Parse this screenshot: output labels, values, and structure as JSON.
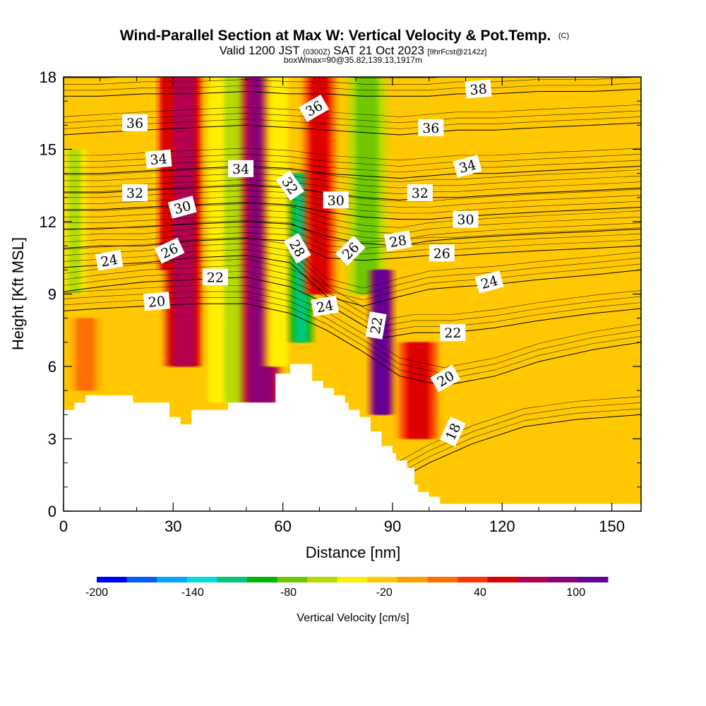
{
  "header": {
    "title": "Wind-Parallel Section at Max W: Vertical Velocity & Pot.Temp.",
    "copyright": "(C)",
    "valid_prefix": "Valid 1200 JST",
    "valid_utc": "(0300Z)",
    "valid_date": "SAT 21 Oct 2023",
    "forecast": "[9hrFcst@2142z]",
    "box_info": "boxWmax=90@35.82,139.13,1917m"
  },
  "chart_data": {
    "type": "heatmap",
    "xlabel": "Distance [nm]",
    "ylabel": "Height [Kft MSL]",
    "xlim": [
      0,
      158
    ],
    "ylim": [
      0,
      18
    ],
    "x_ticks": [
      0,
      30,
      60,
      90,
      120,
      150
    ],
    "y_ticks": [
      0,
      3,
      6,
      9,
      12,
      15,
      18
    ],
    "grid": false,
    "colorbar": {
      "label": "Vertical Velocity [cm/s]",
      "tick_labels": [
        "-200",
        "-140",
        "-80",
        "-20",
        "40",
        "100"
      ],
      "tick_values": [
        -200,
        -140,
        -80,
        -20,
        40,
        100
      ],
      "levels": [
        -200,
        -180,
        -160,
        -140,
        -120,
        -100,
        -80,
        -60,
        -40,
        -20,
        0,
        20,
        40,
        60,
        80,
        100,
        120
      ],
      "colors": [
        "#0000ff",
        "#0060ff",
        "#00a8ff",
        "#00dcdc",
        "#00c878",
        "#00b400",
        "#6ec800",
        "#b4dc00",
        "#ffee00",
        "#ffc800",
        "#ffa000",
        "#ff6e00",
        "#ff3200",
        "#dc0000",
        "#b40050",
        "#8c0078",
        "#640096"
      ]
    },
    "velocity_columns": [
      {
        "x": 3,
        "x_width": 3,
        "y0": 9,
        "y1": 15,
        "w": -30
      },
      {
        "x": 6,
        "x_width": 4,
        "y0": 5,
        "y1": 8,
        "w": 10
      },
      {
        "x": 28,
        "x_width": 2,
        "y0": 10,
        "y1": 18,
        "w": 40
      },
      {
        "x": 33,
        "x_width": 5,
        "y0": 6,
        "y1": 18,
        "w": 60
      },
      {
        "x": 42,
        "x_width": 4,
        "y0": 4.5,
        "y1": 18,
        "w": -20
      },
      {
        "x": 47,
        "x_width": 5,
        "y0": 4.5,
        "y1": 18,
        "w": -40
      },
      {
        "x": 54,
        "x_width": 5,
        "y0": 4.5,
        "y1": 18,
        "w": 80
      },
      {
        "x": 59,
        "x_width": 4,
        "y0": 6,
        "y1": 18,
        "w": -10
      },
      {
        "x": 65,
        "x_width": 3,
        "y0": 7,
        "y1": 14,
        "w": -90
      },
      {
        "x": 70,
        "x_width": 4,
        "y0": 9,
        "y1": 18,
        "w": 50
      },
      {
        "x": 83,
        "x_width": 5,
        "y0": 9,
        "y1": 18,
        "w": -50
      },
      {
        "x": 87,
        "x_width": 3,
        "y0": 4,
        "y1": 10,
        "w": 110
      },
      {
        "x": 97,
        "x_width": 5,
        "y0": 3,
        "y1": 7,
        "w": 40
      }
    ],
    "terrain": [
      [
        0,
        4.2
      ],
      [
        3,
        4.2
      ],
      [
        3,
        4.5
      ],
      [
        6,
        4.5
      ],
      [
        6,
        4.8
      ],
      [
        19,
        4.8
      ],
      [
        19,
        4.5
      ],
      [
        29,
        4.5
      ],
      [
        29,
        3.9
      ],
      [
        32,
        3.9
      ],
      [
        32,
        3.6
      ],
      [
        35,
        3.6
      ],
      [
        35,
        4.2
      ],
      [
        45,
        4.2
      ],
      [
        45,
        4.5
      ],
      [
        58,
        4.5
      ],
      [
        58,
        5.7
      ],
      [
        62,
        5.7
      ],
      [
        62,
        6.1
      ],
      [
        68,
        6.1
      ],
      [
        68,
        5.4
      ],
      [
        71,
        5.4
      ],
      [
        71,
        5.1
      ],
      [
        74,
        5.1
      ],
      [
        74,
        4.8
      ],
      [
        77,
        4.8
      ],
      [
        77,
        4.5
      ],
      [
        78,
        4.5
      ],
      [
        78,
        4.2
      ],
      [
        81,
        4.2
      ],
      [
        81,
        3.9
      ],
      [
        84,
        3.9
      ],
      [
        84,
        3.3
      ],
      [
        87,
        3.3
      ],
      [
        87,
        2.7
      ],
      [
        90,
        2.7
      ],
      [
        90,
        2.4
      ],
      [
        91,
        2.4
      ],
      [
        91,
        2.1
      ],
      [
        94,
        2.1
      ],
      [
        94,
        1.8
      ],
      [
        96,
        1.8
      ],
      [
        96,
        1.1
      ],
      [
        97,
        1.1
      ],
      [
        97,
        0.8
      ],
      [
        100,
        0.8
      ],
      [
        100,
        0.6
      ],
      [
        103,
        0.6
      ],
      [
        103,
        0.3
      ],
      [
        105,
        0.3
      ],
      [
        105,
        0.3
      ],
      [
        158,
        0.3
      ],
      [
        158,
        0
      ],
      [
        0,
        0
      ]
    ],
    "isentropes": [
      {
        "theta": 18,
        "x": [
          88,
          100,
          112,
          126,
          140,
          158
        ],
        "y": [
          1.0,
          2.0,
          2.8,
          3.5,
          3.8,
          4.0
        ]
      },
      {
        "theta": 20,
        "x": [
          0,
          10,
          22,
          35,
          50,
          62,
          72,
          82,
          92,
          104,
          118,
          130,
          145,
          158
        ],
        "y": [
          8.3,
          8.4,
          8.5,
          8.6,
          8.6,
          8.2,
          7.5,
          6.6,
          5.6,
          5.2,
          5.6,
          6.2,
          6.7,
          7.0
        ]
      },
      {
        "theta": 22,
        "x": [
          0,
          10,
          22,
          35,
          50,
          62,
          72,
          82,
          88,
          96,
          106,
          118,
          130,
          145,
          158
        ],
        "y": [
          9.1,
          9.3,
          9.5,
          9.6,
          9.7,
          9.3,
          8.6,
          7.7,
          7.2,
          7.4,
          7.4,
          7.6,
          7.9,
          8.2,
          8.4
        ]
      },
      {
        "theta": 24,
        "x": [
          0,
          10,
          22,
          35,
          50,
          62,
          72,
          82,
          92,
          100,
          108,
          118,
          130,
          145,
          158
        ],
        "y": [
          10.1,
          10.2,
          10.3,
          10.5,
          10.6,
          10.3,
          8.9,
          8.5,
          8.9,
          9.2,
          9.3,
          9.4,
          9.6,
          9.8,
          10.0
        ]
      },
      {
        "theta": 26,
        "x": [
          0,
          10,
          22,
          35,
          50,
          62,
          72,
          82,
          92,
          100,
          108,
          118,
          130,
          145,
          158
        ],
        "y": [
          10.9,
          11.0,
          11.0,
          11.2,
          11.3,
          11.2,
          10.5,
          10.4,
          10.5,
          10.6,
          10.6,
          10.7,
          10.8,
          10.9,
          11.0
        ]
      },
      {
        "theta": 28,
        "x": [
          0,
          10,
          22,
          35,
          50,
          62,
          72,
          82,
          92,
          100,
          108,
          118,
          130,
          145,
          158
        ],
        "y": [
          11.7,
          11.7,
          11.8,
          11.9,
          12.0,
          11.9,
          11.4,
          11.1,
          11.0,
          11.2,
          11.3,
          11.4,
          11.5,
          11.6,
          11.7
        ]
      },
      {
        "theta": 30,
        "x": [
          0,
          10,
          22,
          35,
          50,
          62,
          72,
          82,
          92,
          100,
          108,
          118,
          130,
          145,
          158
        ],
        "y": [
          12.5,
          12.5,
          12.6,
          12.7,
          12.8,
          12.7,
          12.4,
          12.2,
          12.1,
          12.1,
          12.2,
          12.3,
          12.4,
          12.5,
          12.6
        ]
      },
      {
        "theta": 32,
        "x": [
          0,
          10,
          22,
          35,
          50,
          62,
          72,
          82,
          92,
          100,
          108,
          118,
          130,
          145,
          158
        ],
        "y": [
          13.2,
          13.2,
          13.3,
          13.4,
          13.5,
          13.4,
          13.2,
          13.0,
          12.9,
          13.0,
          13.0,
          13.1,
          13.2,
          13.3,
          13.4
        ]
      },
      {
        "theta": 34,
        "x": [
          0,
          10,
          22,
          35,
          50,
          62,
          72,
          82,
          92,
          100,
          108,
          118,
          130,
          145,
          158
        ],
        "y": [
          14.0,
          14.0,
          14.1,
          14.2,
          14.3,
          14.2,
          14.0,
          13.9,
          13.8,
          13.9,
          14.0,
          14.0,
          14.1,
          14.2,
          14.3
        ]
      },
      {
        "theta": 36,
        "x": [
          0,
          10,
          22,
          35,
          50,
          62,
          72,
          82,
          92,
          100,
          108,
          118,
          130,
          145,
          158
        ],
        "y": [
          15.6,
          15.7,
          15.8,
          15.9,
          16.0,
          15.9,
          15.8,
          15.7,
          15.6,
          15.7,
          15.8,
          15.8,
          15.9,
          16.0,
          16.1
        ]
      },
      {
        "theta": 38,
        "x": [
          0,
          10,
          22,
          35,
          50,
          62,
          72,
          82,
          92,
          100,
          108,
          118,
          130,
          145,
          158
        ],
        "y": [
          17.2,
          17.2,
          17.3,
          17.3,
          17.4,
          17.3,
          17.3,
          17.2,
          17.2,
          17.2,
          17.3,
          17.3,
          17.4,
          17.4,
          17.5
        ]
      }
    ],
    "contour_labels": [
      {
        "text": "36",
        "x": 19.5,
        "y": 16.1,
        "angle": 0
      },
      {
        "text": "34",
        "x": 26.0,
        "y": 14.6,
        "angle": -5
      },
      {
        "text": "32",
        "x": 19.5,
        "y": 13.2,
        "angle": 0
      },
      {
        "text": "30",
        "x": 32.5,
        "y": 12.6,
        "angle": -15
      },
      {
        "text": "26",
        "x": 29.0,
        "y": 10.8,
        "angle": -25
      },
      {
        "text": "24",
        "x": 12.5,
        "y": 10.4,
        "angle": -10
      },
      {
        "text": "22",
        "x": 41.5,
        "y": 9.7,
        "angle": 0
      },
      {
        "text": "20",
        "x": 25.5,
        "y": 8.7,
        "angle": -5
      },
      {
        "text": "34",
        "x": 48.5,
        "y": 14.2,
        "angle": 0
      },
      {
        "text": "36",
        "x": 68.5,
        "y": 16.7,
        "angle": -30
      },
      {
        "text": "32",
        "x": 62.0,
        "y": 13.5,
        "angle": 55
      },
      {
        "text": "30",
        "x": 74.5,
        "y": 12.9,
        "angle": 0
      },
      {
        "text": "28",
        "x": 64.0,
        "y": 10.9,
        "angle": 60
      },
      {
        "text": "26",
        "x": 78.5,
        "y": 10.8,
        "angle": -45
      },
      {
        "text": "24",
        "x": 71.5,
        "y": 8.5,
        "angle": -10
      },
      {
        "text": "22",
        "x": 85.5,
        "y": 7.7,
        "angle": -80
      },
      {
        "text": "28",
        "x": 91.5,
        "y": 11.2,
        "angle": -10
      },
      {
        "text": "32",
        "x": 97.5,
        "y": 13.2,
        "angle": 0
      },
      {
        "text": "36",
        "x": 100.5,
        "y": 15.9,
        "angle": 0
      },
      {
        "text": "38",
        "x": 113.5,
        "y": 17.5,
        "angle": -5
      },
      {
        "text": "34",
        "x": 110.5,
        "y": 14.3,
        "angle": -15
      },
      {
        "text": "30",
        "x": 110.0,
        "y": 12.1,
        "angle": 0
      },
      {
        "text": "26",
        "x": 103.5,
        "y": 10.7,
        "angle": 0
      },
      {
        "text": "24",
        "x": 116.5,
        "y": 9.5,
        "angle": -15
      },
      {
        "text": "22",
        "x": 106.5,
        "y": 7.4,
        "angle": 0
      },
      {
        "text": "20",
        "x": 104.5,
        "y": 5.5,
        "angle": -30
      },
      {
        "text": "18",
        "x": 106.5,
        "y": 3.3,
        "angle": -65
      }
    ]
  }
}
